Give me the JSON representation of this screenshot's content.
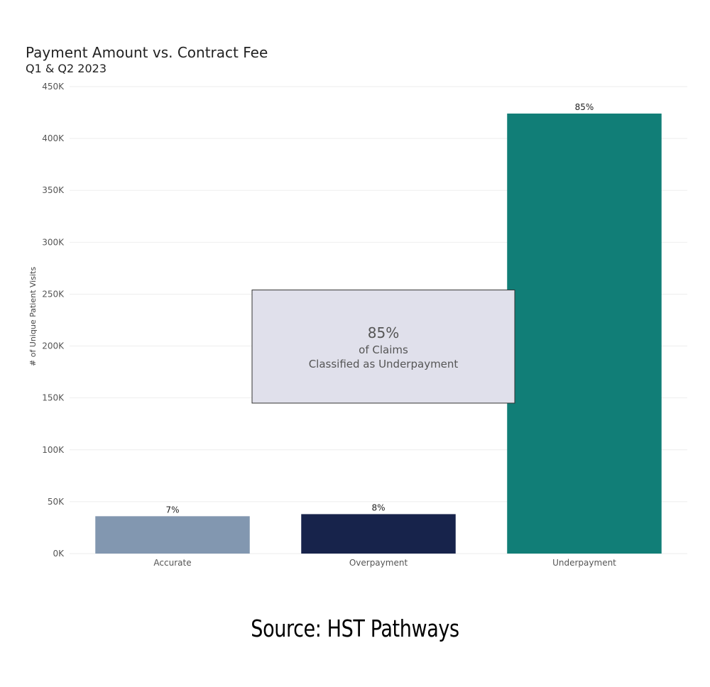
{
  "chart_data": {
    "type": "bar",
    "title": "Payment Amount vs. Contract Fee",
    "subtitle": "Q1 & Q2 2023",
    "xlabel": "",
    "ylabel": "# of Unique Patient Visits",
    "ylim": [
      0,
      450000
    ],
    "y_ticks": [
      0,
      50000,
      100000,
      150000,
      200000,
      250000,
      300000,
      350000,
      400000,
      450000
    ],
    "y_tick_labels": [
      "0K",
      "50K",
      "100K",
      "150K",
      "200K",
      "250K",
      "300K",
      "350K",
      "400K",
      "450K"
    ],
    "grid": true,
    "categories": [
      "Accurate",
      "Overpayment",
      "Underpayment"
    ],
    "values": [
      36000,
      38000,
      424000
    ],
    "data_labels": [
      "7%",
      "8%",
      "85%"
    ],
    "colors": [
      "#8297b0",
      "#17234b",
      "#117e77"
    ],
    "annotation": {
      "headline": "85%",
      "line1": "of Claims",
      "line2": "Classified as Underpayment",
      "fill": "#e0e0eb",
      "y_range": [
        145000,
        254000
      ]
    }
  },
  "footer": {
    "source": "Source: HST Pathways"
  }
}
